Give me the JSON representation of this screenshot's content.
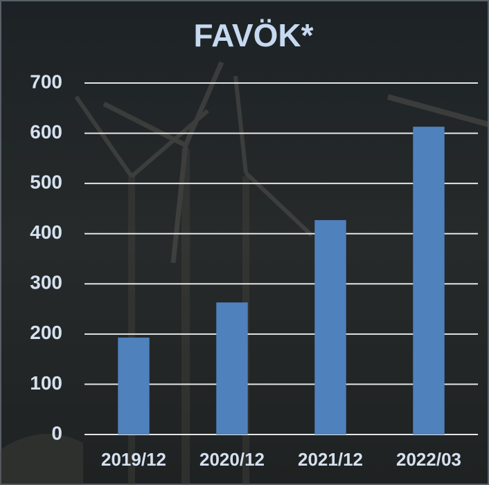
{
  "chart_data": {
    "type": "bar",
    "title": "FAVÖK*",
    "categories": [
      "2019/12",
      "2020/12",
      "2021/12",
      "2022/03"
    ],
    "values": [
      193,
      263,
      427,
      613
    ],
    "color": "#4f81bd",
    "ylim": [
      0,
      700
    ],
    "yticks": [
      0,
      100,
      200,
      300,
      400,
      500,
      600,
      700
    ],
    "grid": true
  }
}
